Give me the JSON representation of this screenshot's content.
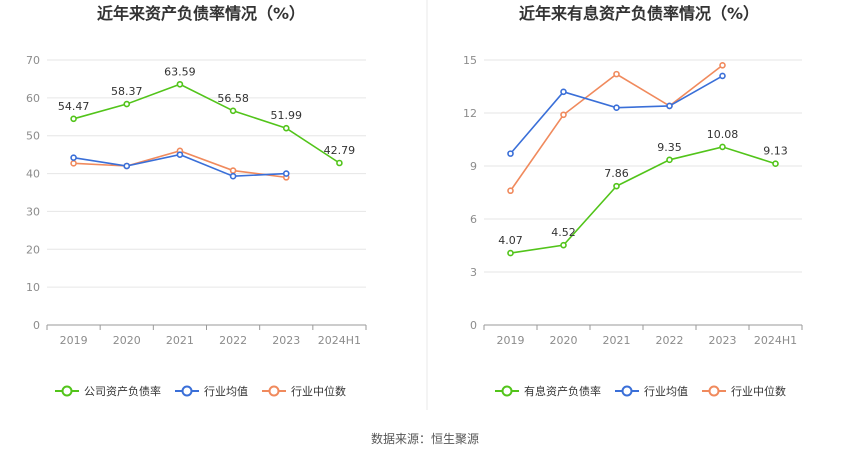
{
  "source_label": "数据来源：恒生聚源",
  "chart_data": [
    {
      "type": "line",
      "title": "近年来资产负债率情况（%）",
      "categories": [
        "2019",
        "2020",
        "2021",
        "2022",
        "2023",
        "2024H1"
      ],
      "ylim": [
        0,
        70
      ],
      "yticks": [
        0,
        10,
        20,
        30,
        40,
        50,
        60,
        70
      ],
      "grid": true,
      "legend_position": "bottom",
      "series": [
        {
          "name": "公司资产负债率",
          "color": "#52c41a",
          "values": [
            54.47,
            58.37,
            63.59,
            56.58,
            51.99,
            42.79
          ],
          "labels": [
            "54.47",
            "58.37",
            "63.59",
            "56.58",
            "51.99",
            "42.79"
          ]
        },
        {
          "name": "行业均值",
          "color": "#3a6fd8",
          "values": [
            44.2,
            42.0,
            45.0,
            39.3,
            40.0,
            null
          ],
          "labels": []
        },
        {
          "name": "行业中位数",
          "color": "#f08a5d",
          "values": [
            42.7,
            42.0,
            46.0,
            40.8,
            39.0,
            null
          ],
          "labels": []
        }
      ]
    },
    {
      "type": "line",
      "title": "近年来有息资产负债率情况（%）",
      "categories": [
        "2019",
        "2020",
        "2021",
        "2022",
        "2023",
        "2024H1"
      ],
      "ylim": [
        0,
        15
      ],
      "yticks": [
        0,
        3,
        6,
        9,
        12,
        15
      ],
      "grid": true,
      "legend_position": "bottom",
      "series": [
        {
          "name": "有息资产负债率",
          "color": "#52c41a",
          "values": [
            4.07,
            4.52,
            7.86,
            9.35,
            10.08,
            9.13
          ],
          "labels": [
            "4.07",
            "4.52",
            "7.86",
            "9.35",
            "10.08",
            "9.13"
          ]
        },
        {
          "name": "行业均值",
          "color": "#3a6fd8",
          "values": [
            9.7,
            13.2,
            12.3,
            12.4,
            14.1,
            null
          ],
          "labels": []
        },
        {
          "name": "行业中位数",
          "color": "#f08a5d",
          "values": [
            7.6,
            11.9,
            14.2,
            12.4,
            14.7,
            null
          ],
          "labels": []
        }
      ]
    }
  ]
}
